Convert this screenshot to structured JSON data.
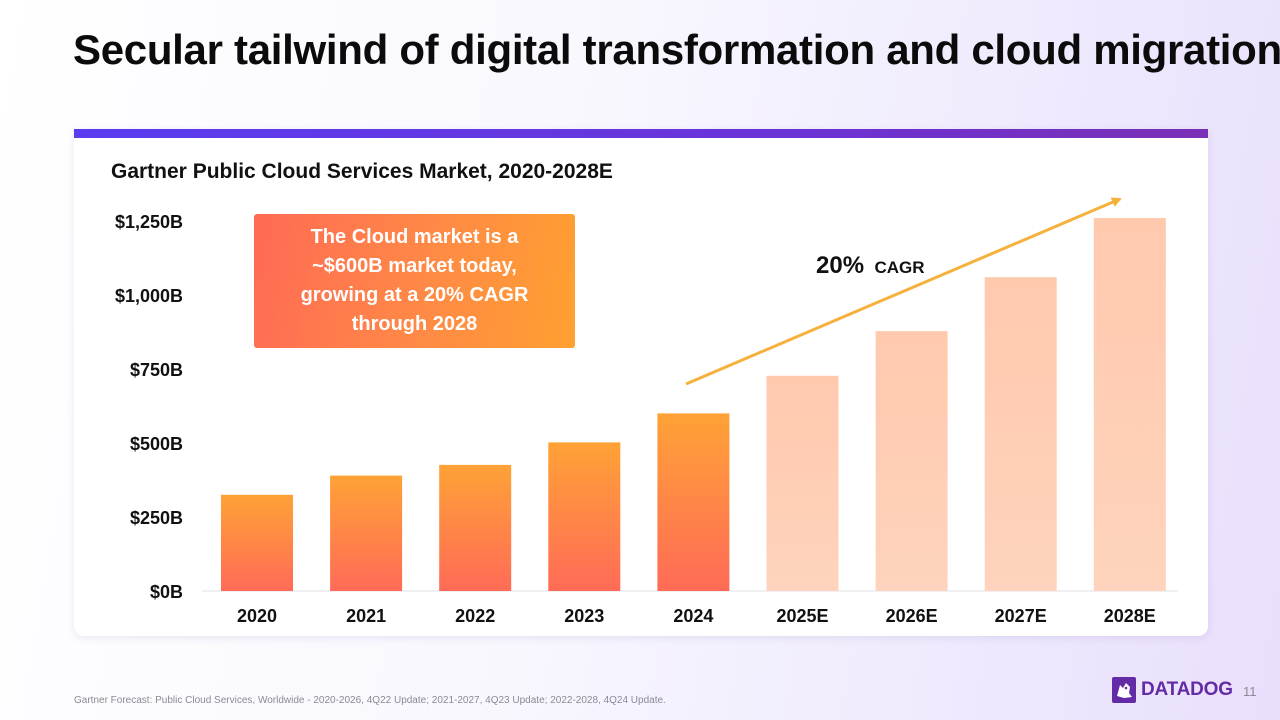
{
  "slide": {
    "title": "Secular tailwind of digital transformation and cloud migration",
    "page_number": "11",
    "footnote": "Gartner Forecast: Public Cloud Services, Worldwide - 2020-2026, 4Q22 Update; 2021-2027, 4Q23 Update; 2022-2028, 4Q24 Update.",
    "logo_text": "DATADOG"
  },
  "callout": {
    "text": "The Cloud market is a ~$600B market today, growing at a 20% CAGR through 2028"
  },
  "colors": {
    "actual_top": "#ffa236",
    "actual_bottom": "#ff6b57",
    "forecast_top": "#ffc9ae",
    "forecast_bottom": "#ffd3bd",
    "arrow": "#f6b13c",
    "top_bar": "#5b3ef0",
    "brand": "#632ca6"
  },
  "chart_data": {
    "type": "bar",
    "title": "Gartner Public Cloud Services Market, 2020-2028E",
    "xlabel": "",
    "ylabel": "",
    "ylim": [
      0,
      1250
    ],
    "yticks": [
      0,
      250,
      500,
      750,
      1000,
      1250
    ],
    "ytick_labels": [
      "$0B",
      "$250B",
      "$500B",
      "$750B",
      "$1,000B",
      "$1,250B"
    ],
    "categories": [
      "2020",
      "2021",
      "2022",
      "2023",
      "2024",
      "2025E",
      "2026E",
      "2027E",
      "2028E"
    ],
    "values": [
      325,
      390,
      426,
      502,
      600,
      727,
      878,
      1060,
      1260
    ],
    "forecast": [
      false,
      false,
      false,
      false,
      false,
      true,
      true,
      true,
      true
    ],
    "grid": false,
    "legend": "none",
    "annotation": {
      "value": "20%",
      "label": "CAGR"
    }
  }
}
